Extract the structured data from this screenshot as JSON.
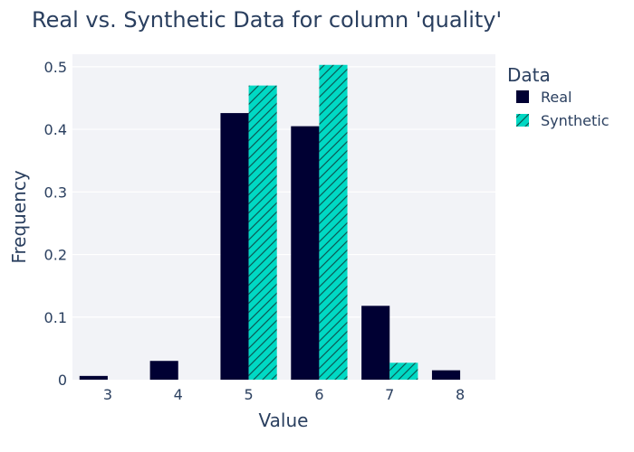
{
  "chart_data": {
    "type": "bar",
    "title": "Real vs. Synthetic Data for column 'quality'",
    "xlabel": "Value",
    "ylabel": "Frequency",
    "categories": [
      "3",
      "4",
      "5",
      "6",
      "7",
      "8"
    ],
    "ylim": [
      0,
      0.52
    ],
    "yticks": [
      "0",
      "0.1",
      "0.2",
      "0.3",
      "0.4",
      "0.5"
    ],
    "legend_title": "Data",
    "legend_position": "right",
    "grid": true,
    "series": [
      {
        "name": "Real",
        "color": "#000033",
        "pattern": "solid",
        "values": [
          0.006,
          0.03,
          0.426,
          0.405,
          0.118,
          0.015
        ]
      },
      {
        "name": "Synthetic",
        "color": "#00d9c4",
        "pattern": "hatched",
        "values": [
          0,
          0,
          0.47,
          0.503,
          0.027,
          0
        ]
      }
    ]
  }
}
